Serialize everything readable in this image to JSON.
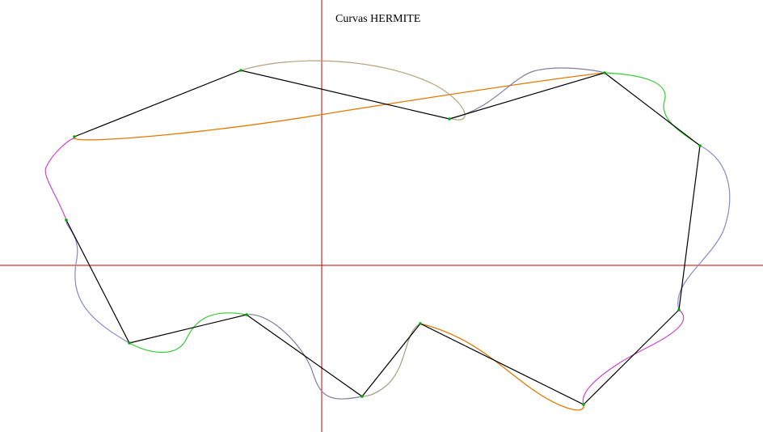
{
  "title": "Curvas HERMITE",
  "colors": {
    "background": "#ffffff",
    "axes": "#cc0000",
    "polygon": "#000000",
    "control_point": "#00aa00",
    "curve_orange": "#e07b00",
    "curve_tan": "#b8a07a",
    "curve_gray_blue": "#8080a0",
    "curve_green": "#33cc33",
    "curve_purple": "#8888cc",
    "curve_magenta": "#cc44cc",
    "curve_olive_gray": "#a0a080"
  }
}
